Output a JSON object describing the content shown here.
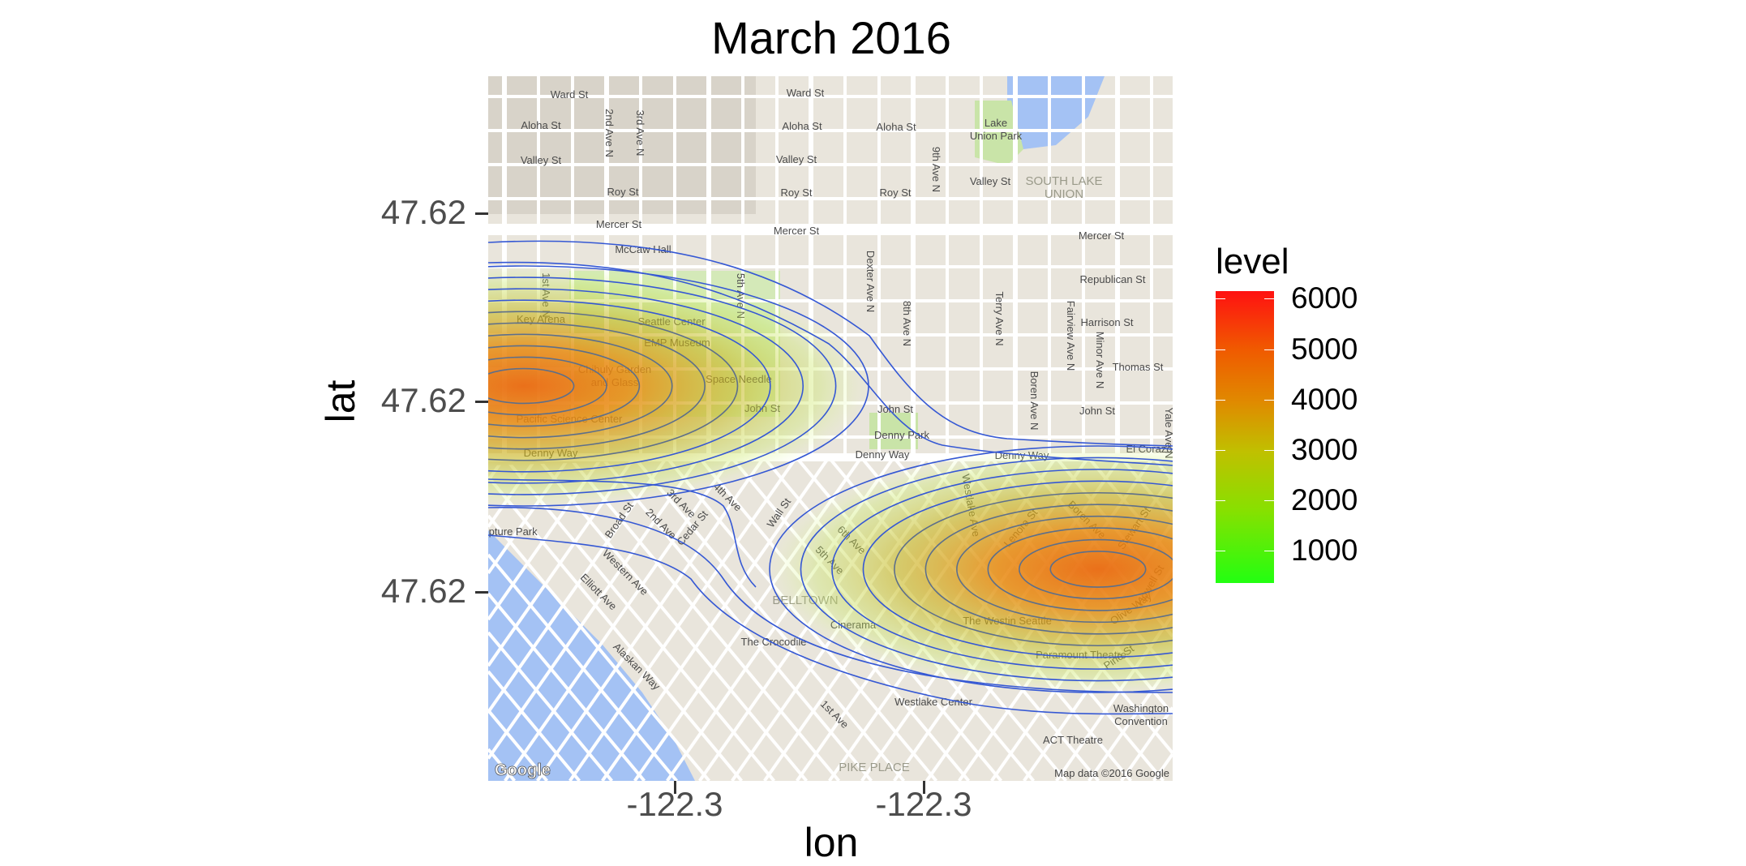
{
  "chart_data": {
    "type": "heatmap",
    "subtype": "2d density contour overlay on street map",
    "title": "March 2016",
    "xlabel": "lon",
    "ylabel": "lat",
    "x_tick_labels": [
      "-122.3",
      "-122.3"
    ],
    "y_tick_labels": [
      "47.62",
      "47.62",
      "47.62"
    ],
    "grid": false,
    "legend": {
      "title": "level",
      "position": "right",
      "breaks": [
        "6000",
        "5000",
        "4000",
        "3000",
        "2000",
        "1000"
      ],
      "range": [
        360,
        6150
      ],
      "low_color": "#22ff11",
      "high_color": "#ff1111"
    },
    "contour_color": "#3558d4"
  },
  "map": {
    "attribution": "Map data ©2016 Google",
    "logo": "Google",
    "labels": [
      "Ward St",
      "Ward St",
      "Aloha St",
      "Aloha St",
      "Aloha St",
      "Valley St",
      "Valley St",
      "Valley St",
      "Roy St",
      "Roy St",
      "Roy St",
      "Lake",
      "Union Park",
      "SOUTH LAKE",
      "UNION",
      "Mercer St",
      "Mercer St",
      "Mercer St",
      "McCaw Hall",
      "Republican St",
      "Harrison St",
      "Thomas St",
      "John St",
      "John St",
      "John St",
      "Key Arena",
      "Seattle Center",
      "EMP Museum",
      "Chihuly Garden",
      "and Glass",
      "Space Needle",
      "Pacific Science Center",
      "Denny Way",
      "Denny Way",
      "Denny Way",
      "Denny Park",
      "El Corazo",
      "BELLTOWN",
      "Cinerama",
      "The Crocodile",
      "The Westin Seattle",
      "Paramount Theatre",
      "Westlake Center",
      "Washington",
      "Convention",
      "ACT Theatre",
      "PIKE PLACE",
      "Dexter Ave N",
      "5th Ave N",
      "Terry Ave N",
      "Fairview Ave N",
      "Western Ave",
      "Elliott Ave",
      "Alaskan Way",
      "1st Ave",
      "Wall St",
      "Westlake Ave",
      "9th Ave N",
      "8th Ave N",
      "Minor Ave N",
      "Boren Ave N",
      "2nd Ave N",
      "3rd Ave N",
      "1st Ave N",
      "Broad St",
      "2nd Ave",
      "3rd Ave",
      "4th Ave",
      "Cedar St",
      "6th Ave",
      "5th Ave",
      "Lenora St",
      "Boren Ave",
      "Stewart St",
      "Olive Way",
      "Pine St",
      "Howell St",
      "Yale Ave N",
      "Sculpture Park"
    ]
  }
}
